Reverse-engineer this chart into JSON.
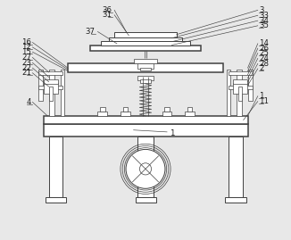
{
  "bg_color": "#e8e8e8",
  "line_color": "#404040",
  "label_color": "#202020",
  "figsize": [
    3.26,
    2.69
  ],
  "dpi": 100
}
